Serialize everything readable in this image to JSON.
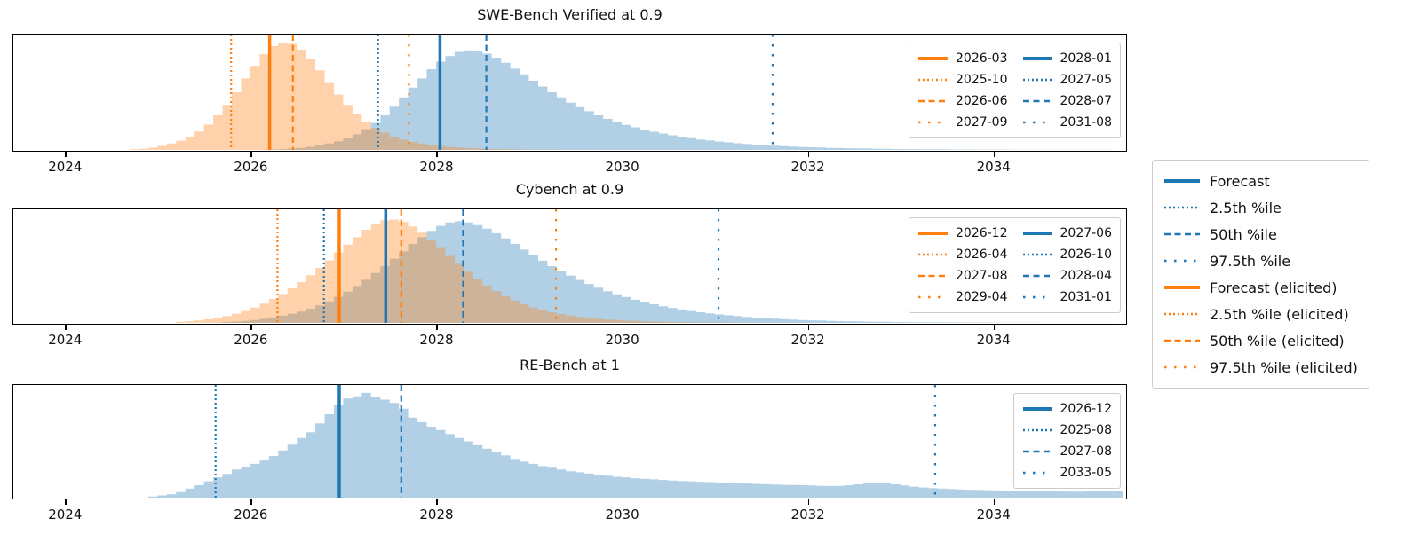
{
  "figure": {
    "background": "#ffffff",
    "blue": "#1f77b4",
    "orange": "#ff7f0e",
    "fill_alpha": 0.35
  },
  "main_legend": {
    "items": [
      {
        "label": "Forecast",
        "color": "#1f77b4",
        "style": "solid"
      },
      {
        "label": "2.5th %ile",
        "color": "#1f77b4",
        "style": "dotted"
      },
      {
        "label": "50th %ile",
        "color": "#1f77b4",
        "style": "dashed"
      },
      {
        "label": "97.5th %ile",
        "color": "#1f77b4",
        "style": "sparse"
      },
      {
        "label": "Forecast (elicited)",
        "color": "#ff7f0e",
        "style": "solid"
      },
      {
        "label": "2.5th %ile (elicited)",
        "color": "#ff7f0e",
        "style": "dotted"
      },
      {
        "label": "50th %ile (elicited)",
        "color": "#ff7f0e",
        "style": "dashed"
      },
      {
        "label": "97.5th %ile (elicited)",
        "color": "#ff7f0e",
        "style": "sparse"
      }
    ]
  },
  "chart_data": [
    {
      "type": "area",
      "title": "SWE-Bench Verified at 0.9",
      "x_range": [
        2023.447,
        2035.423
      ],
      "x_ticks": [
        "2024",
        "2026",
        "2028",
        "2030",
        "2032",
        "2034"
      ],
      "x_tick_values": [
        2024,
        2026,
        2028,
        2030,
        2032,
        2034
      ],
      "grid": false,
      "series": [
        {
          "name": "Forecast",
          "color": "#1f77b4",
          "x_start": 2026.2,
          "x_step": 0.1,
          "heights": [
            0.004,
            0.007,
            0.012,
            0.018,
            0.027,
            0.04,
            0.055,
            0.075,
            0.1,
            0.135,
            0.18,
            0.235,
            0.3,
            0.375,
            0.455,
            0.54,
            0.62,
            0.7,
            0.765,
            0.815,
            0.85,
            0.862,
            0.855,
            0.835,
            0.8,
            0.755,
            0.705,
            0.655,
            0.6,
            0.55,
            0.5,
            0.455,
            0.41,
            0.37,
            0.335,
            0.3,
            0.27,
            0.243,
            0.218,
            0.196,
            0.176,
            0.158,
            0.142,
            0.127,
            0.114,
            0.102,
            0.091,
            0.082,
            0.073,
            0.065,
            0.058,
            0.052,
            0.046,
            0.041,
            0.037,
            0.033,
            0.029,
            0.026,
            0.023,
            0.021,
            0.018,
            0.016,
            0.015,
            0.013,
            0.012,
            0.01,
            0.009,
            0.008,
            0.007,
            0.007,
            0.006,
            0.005,
            0.005,
            0.004,
            0.004,
            0.004,
            0.003,
            0.003,
            0.003,
            0.003,
            0.002,
            0.002,
            0.002,
            0.002,
            0.002,
            0.002,
            0.002,
            0.002,
            0.002,
            0.002,
            0.002
          ]
        },
        {
          "name": "Forecast (elicited)",
          "color": "#ff7f0e",
          "x_start": 2024.7,
          "x_step": 0.1,
          "heights": [
            0.005,
            0.01,
            0.02,
            0.035,
            0.055,
            0.08,
            0.115,
            0.16,
            0.22,
            0.3,
            0.39,
            0.5,
            0.62,
            0.73,
            0.83,
            0.9,
            0.93,
            0.92,
            0.87,
            0.79,
            0.69,
            0.58,
            0.48,
            0.39,
            0.31,
            0.245,
            0.19,
            0.15,
            0.115,
            0.09,
            0.07,
            0.055,
            0.043,
            0.034,
            0.027,
            0.021,
            0.017,
            0.013,
            0.01,
            0.008,
            0.006,
            0.005,
            0.004,
            0.003,
            0.003,
            0.002,
            0.002,
            0.001,
            0.001
          ]
        }
      ],
      "vlines": [
        {
          "label": "2026-03",
          "x": 2026.208,
          "color": "#ff7f0e",
          "style": "solid"
        },
        {
          "label": "2025-10",
          "x": 2025.792,
          "color": "#ff7f0e",
          "style": "dotted"
        },
        {
          "label": "2026-06",
          "x": 2026.458,
          "color": "#ff7f0e",
          "style": "dashed"
        },
        {
          "label": "2027-09",
          "x": 2027.708,
          "color": "#ff7f0e",
          "style": "sparse"
        },
        {
          "label": "2028-01",
          "x": 2028.042,
          "color": "#1f77b4",
          "style": "solid"
        },
        {
          "label": "2027-05",
          "x": 2027.375,
          "color": "#1f77b4",
          "style": "dotted"
        },
        {
          "label": "2028-07",
          "x": 2028.542,
          "color": "#1f77b4",
          "style": "dashed"
        },
        {
          "label": "2031-08",
          "x": 2031.625,
          "color": "#1f77b4",
          "style": "sparse"
        }
      ],
      "legend_columns": [
        [
          {
            "label": "2026-03",
            "color": "#ff7f0e",
            "style": "solid"
          },
          {
            "label": "2025-10",
            "color": "#ff7f0e",
            "style": "dotted"
          },
          {
            "label": "2026-06",
            "color": "#ff7f0e",
            "style": "dashed"
          },
          {
            "label": "2027-09",
            "color": "#ff7f0e",
            "style": "sparse"
          }
        ],
        [
          {
            "label": "2028-01",
            "color": "#1f77b4",
            "style": "solid"
          },
          {
            "label": "2027-05",
            "color": "#1f77b4",
            "style": "dotted"
          },
          {
            "label": "2028-07",
            "color": "#1f77b4",
            "style": "dashed"
          },
          {
            "label": "2031-08",
            "color": "#1f77b4",
            "style": "sparse"
          }
        ]
      ]
    },
    {
      "type": "area",
      "title": "Cybench at 0.9",
      "x_range": [
        2023.447,
        2035.423
      ],
      "x_ticks": [
        "2024",
        "2026",
        "2028",
        "2030",
        "2032",
        "2034"
      ],
      "x_tick_values": [
        2024,
        2026,
        2028,
        2030,
        2032,
        2034
      ],
      "grid": false,
      "series": [
        {
          "name": "Forecast",
          "color": "#1f77b4",
          "x_start": 2025.7,
          "x_step": 0.1,
          "heights": [
            0.008,
            0.012,
            0.018,
            0.026,
            0.036,
            0.048,
            0.063,
            0.08,
            0.1,
            0.125,
            0.155,
            0.19,
            0.23,
            0.275,
            0.325,
            0.38,
            0.44,
            0.5,
            0.565,
            0.63,
            0.695,
            0.755,
            0.81,
            0.855,
            0.885,
            0.895,
            0.885,
            0.862,
            0.83,
            0.79,
            0.745,
            0.695,
            0.645,
            0.595,
            0.548,
            0.5,
            0.458,
            0.417,
            0.378,
            0.343,
            0.31,
            0.28,
            0.252,
            0.227,
            0.204,
            0.183,
            0.164,
            0.147,
            0.132,
            0.118,
            0.105,
            0.094,
            0.084,
            0.075,
            0.067,
            0.06,
            0.053,
            0.047,
            0.042,
            0.037,
            0.033,
            0.029,
            0.026,
            0.023,
            0.021,
            0.018,
            0.016,
            0.014,
            0.013,
            0.011,
            0.01,
            0.009,
            0.008,
            0.007,
            0.006,
            0.006,
            0.005,
            0.005,
            0.004,
            0.004,
            0.003,
            0.003,
            0.003,
            0.002,
            0.002,
            0.002,
            0.002,
            0.002,
            0.001,
            0.001,
            0.001,
            0.001,
            0.001,
            0.001,
            0.001,
            0.001
          ]
        },
        {
          "name": "Forecast (elicited)",
          "color": "#ff7f0e",
          "x_start": 2025.2,
          "x_step": 0.1,
          "heights": [
            0.01,
            0.015,
            0.022,
            0.032,
            0.045,
            0.06,
            0.08,
            0.105,
            0.135,
            0.17,
            0.21,
            0.255,
            0.305,
            0.36,
            0.42,
            0.485,
            0.55,
            0.62,
            0.69,
            0.755,
            0.82,
            0.875,
            0.905,
            0.91,
            0.89,
            0.85,
            0.795,
            0.73,
            0.66,
            0.59,
            0.52,
            0.45,
            0.388,
            0.33,
            0.28,
            0.235,
            0.197,
            0.164,
            0.136,
            0.113,
            0.094,
            0.078,
            0.064,
            0.053,
            0.044,
            0.036,
            0.03,
            0.025,
            0.02,
            0.017,
            0.014,
            0.011,
            0.009,
            0.008,
            0.006,
            0.005,
            0.004,
            0.004,
            0.003,
            0.003,
            0.002,
            0.002,
            0.002,
            0.001
          ]
        }
      ],
      "vlines": [
        {
          "label": "2026-12",
          "x": 2026.958,
          "color": "#ff7f0e",
          "style": "solid"
        },
        {
          "label": "2026-04",
          "x": 2026.292,
          "color": "#ff7f0e",
          "style": "dotted"
        },
        {
          "label": "2027-08",
          "x": 2027.625,
          "color": "#ff7f0e",
          "style": "dashed"
        },
        {
          "label": "2029-04",
          "x": 2029.292,
          "color": "#ff7f0e",
          "style": "sparse"
        },
        {
          "label": "2027-06",
          "x": 2027.458,
          "color": "#1f77b4",
          "style": "solid"
        },
        {
          "label": "2026-10",
          "x": 2026.792,
          "color": "#1f77b4",
          "style": "dotted"
        },
        {
          "label": "2028-04",
          "x": 2028.292,
          "color": "#1f77b4",
          "style": "dashed"
        },
        {
          "label": "2031-01",
          "x": 2031.042,
          "color": "#1f77b4",
          "style": "sparse"
        }
      ],
      "legend_columns": [
        [
          {
            "label": "2026-12",
            "color": "#ff7f0e",
            "style": "solid"
          },
          {
            "label": "2026-04",
            "color": "#ff7f0e",
            "style": "dotted"
          },
          {
            "label": "2027-08",
            "color": "#ff7f0e",
            "style": "dashed"
          },
          {
            "label": "2029-04",
            "color": "#ff7f0e",
            "style": "sparse"
          }
        ],
        [
          {
            "label": "2027-06",
            "color": "#1f77b4",
            "style": "solid"
          },
          {
            "label": "2026-10",
            "color": "#1f77b4",
            "style": "dotted"
          },
          {
            "label": "2028-04",
            "color": "#1f77b4",
            "style": "dashed"
          },
          {
            "label": "2031-01",
            "color": "#1f77b4",
            "style": "sparse"
          }
        ]
      ]
    },
    {
      "type": "area",
      "title": "RE-Bench at 1",
      "x_range": [
        2023.447,
        2035.423
      ],
      "x_ticks": [
        "2024",
        "2026",
        "2028",
        "2030",
        "2032",
        "2034"
      ],
      "x_tick_values": [
        2024,
        2026,
        2028,
        2030,
        2032,
        2034
      ],
      "grid": false,
      "series": [
        {
          "name": "Forecast",
          "color": "#1f77b4",
          "x_start": 2024.9,
          "x_step": 0.1,
          "heights": [
            0.01,
            0.02,
            0.03,
            0.05,
            0.08,
            0.11,
            0.145,
            0.18,
            0.21,
            0.25,
            0.27,
            0.3,
            0.33,
            0.37,
            0.42,
            0.47,
            0.53,
            0.58,
            0.66,
            0.74,
            0.82,
            0.88,
            0.9,
            0.93,
            0.89,
            0.87,
            0.84,
            0.79,
            0.71,
            0.67,
            0.63,
            0.6,
            0.565,
            0.53,
            0.5,
            0.465,
            0.435,
            0.405,
            0.375,
            0.345,
            0.32,
            0.3,
            0.28,
            0.265,
            0.25,
            0.235,
            0.225,
            0.215,
            0.205,
            0.195,
            0.185,
            0.18,
            0.172,
            0.166,
            0.162,
            0.157,
            0.152,
            0.148,
            0.145,
            0.141,
            0.138,
            0.135,
            0.131,
            0.128,
            0.125,
            0.122,
            0.119,
            0.116,
            0.113,
            0.112,
            0.11,
            0.108,
            0.105,
            0.103,
            0.105,
            0.11,
            0.118,
            0.127,
            0.133,
            0.128,
            0.118,
            0.108,
            0.098,
            0.09,
            0.084,
            0.08,
            0.076,
            0.073,
            0.07,
            0.068,
            0.066,
            0.064,
            0.062,
            0.06,
            0.058,
            0.057,
            0.056,
            0.055,
            0.054,
            0.053,
            0.053,
            0.055,
            0.058,
            0.06,
            0.055
          ]
        }
      ],
      "vlines": [
        {
          "label": "2026-12",
          "x": 2026.958,
          "color": "#1f77b4",
          "style": "solid"
        },
        {
          "label": "2025-08",
          "x": 2025.625,
          "color": "#1f77b4",
          "style": "dotted"
        },
        {
          "label": "2027-08",
          "x": 2027.625,
          "color": "#1f77b4",
          "style": "dashed"
        },
        {
          "label": "2033-05",
          "x": 2033.375,
          "color": "#1f77b4",
          "style": "sparse"
        }
      ],
      "legend_columns": [
        [
          {
            "label": "2026-12",
            "color": "#1f77b4",
            "style": "solid"
          },
          {
            "label": "2025-08",
            "color": "#1f77b4",
            "style": "dotted"
          },
          {
            "label": "2027-08",
            "color": "#1f77b4",
            "style": "dashed"
          },
          {
            "label": "2033-05",
            "color": "#1f77b4",
            "style": "sparse"
          }
        ]
      ]
    }
  ]
}
